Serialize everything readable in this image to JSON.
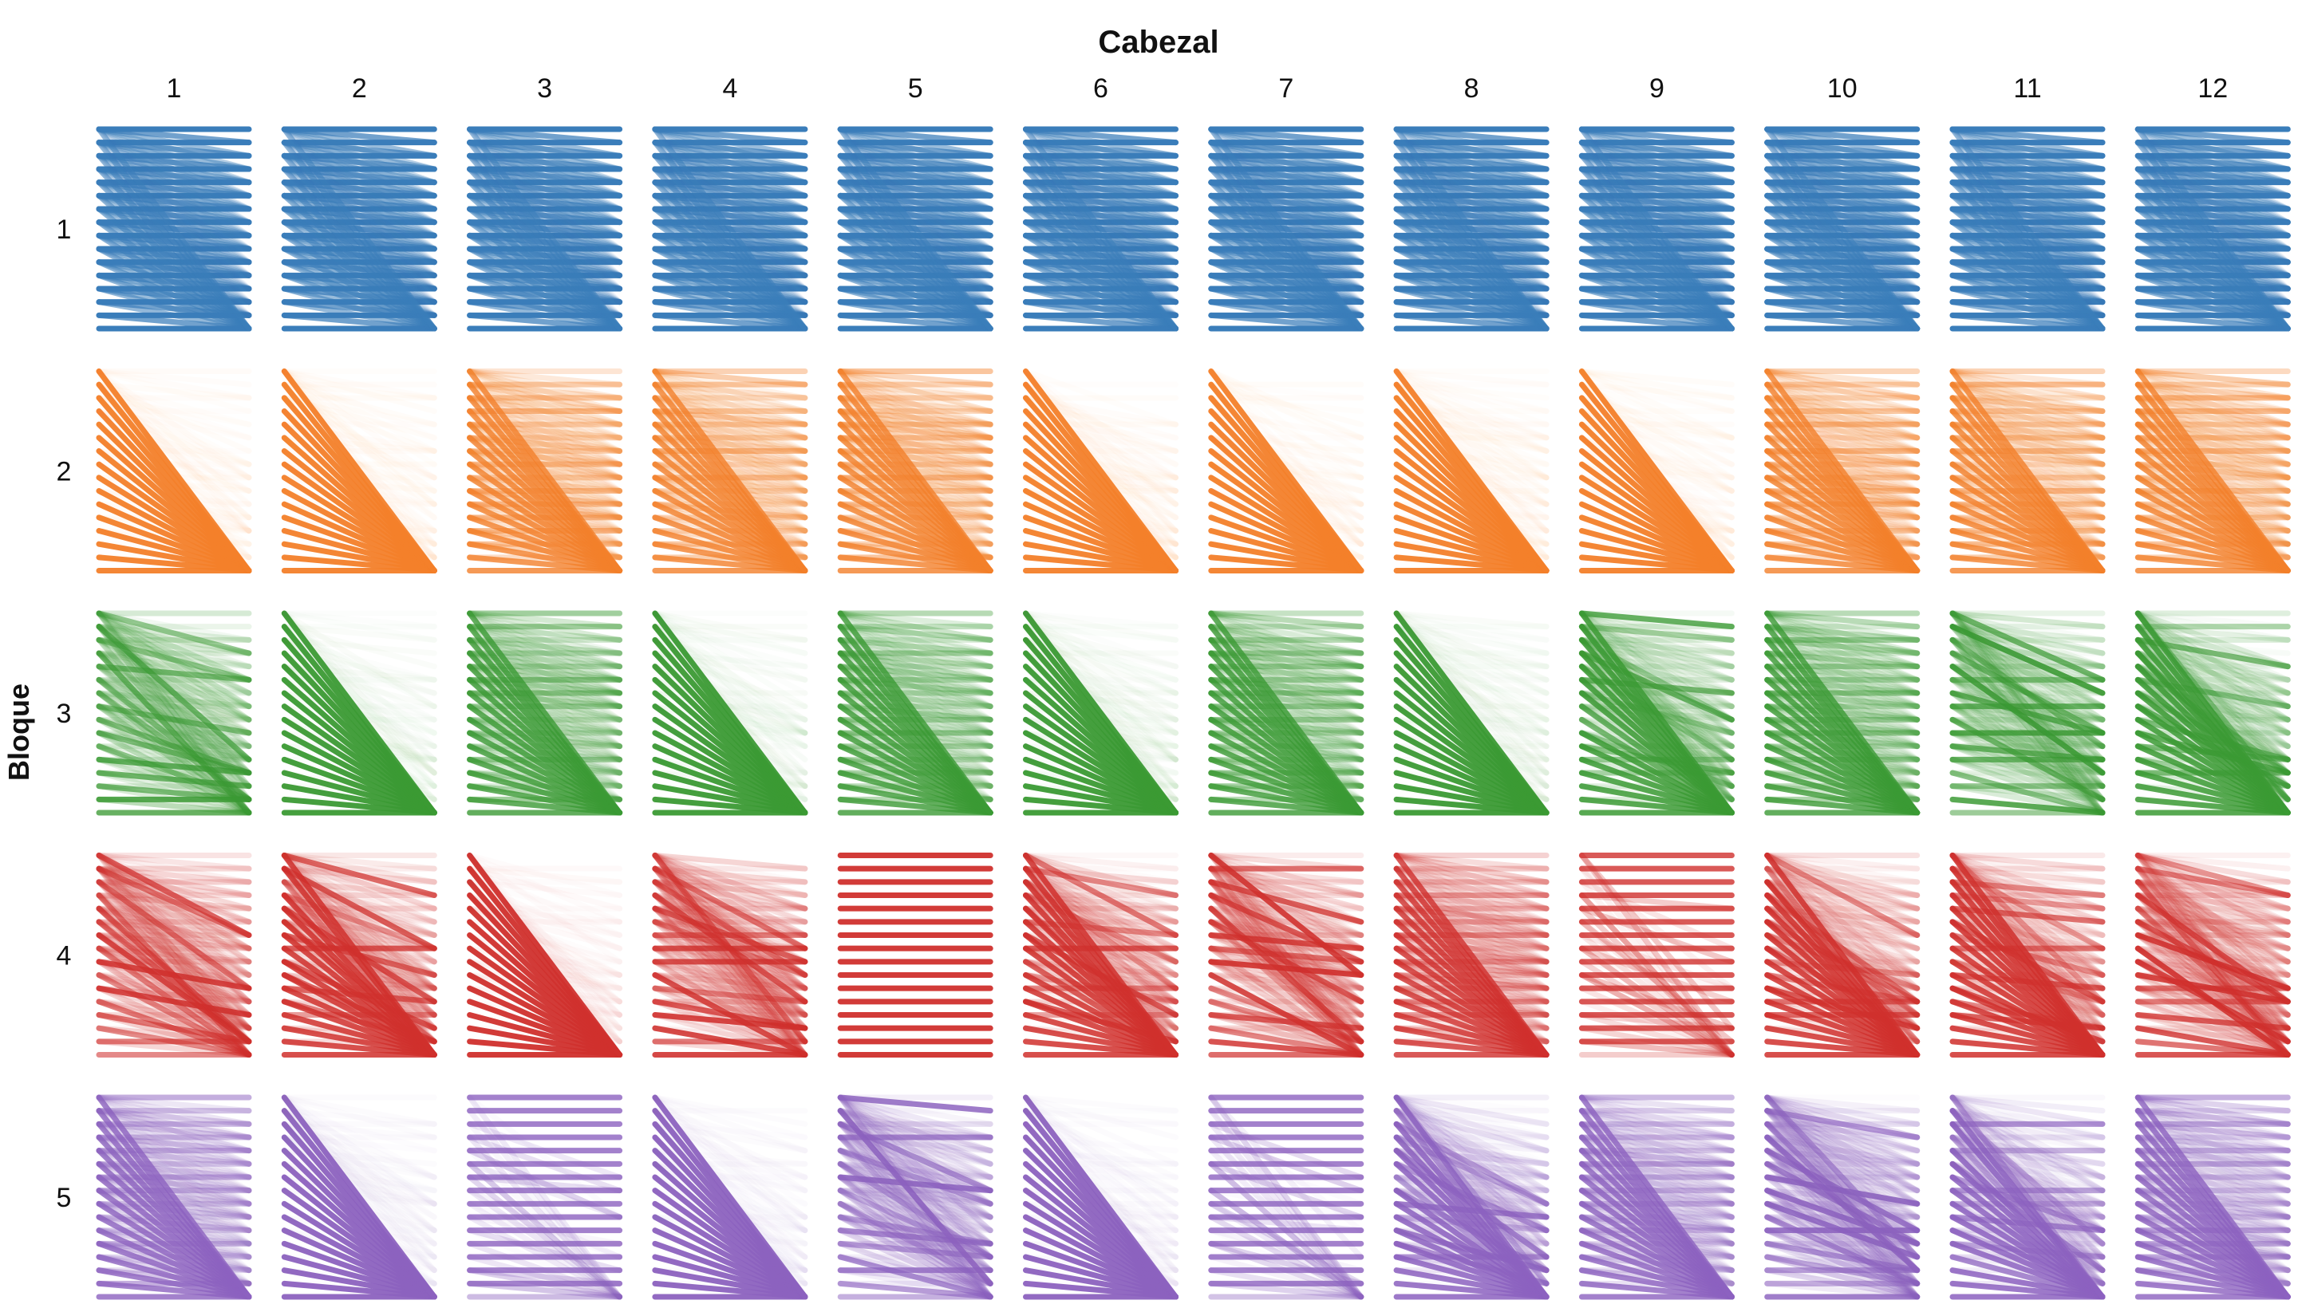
{
  "chart_data": {
    "type": "attention-grid",
    "title": "Cabezal",
    "ylabel": "Bloque",
    "columns": [
      "1",
      "2",
      "3",
      "4",
      "5",
      "6",
      "7",
      "8",
      "9",
      "10",
      "11",
      "12"
    ],
    "rows": [
      "1",
      "2",
      "3",
      "4",
      "5"
    ],
    "tokens": 16,
    "colors": [
      "#3a7dba",
      "#f3802a",
      "#3b9a34",
      "#d0302d",
      "#8c62bf"
    ],
    "patterns": [
      [
        "prev",
        "prev",
        "prev",
        "prev",
        "prev",
        "prev",
        "prev",
        "prev",
        "prev",
        "prev",
        "prev",
        "prev"
      ],
      [
        "first",
        "first",
        "prev-mix",
        "prev-mix",
        "prev-mix",
        "first",
        "first",
        "first",
        "first",
        "prev-mix",
        "prev-mix",
        "prev-mix"
      ],
      [
        "mixed",
        "first",
        "prev-mix",
        "first",
        "prev-mix",
        "first",
        "prev-mix",
        "first",
        "first-mixed",
        "prev-mix",
        "mixed",
        "first-mixed"
      ],
      [
        "mixed",
        "first-mixed",
        "first",
        "mixed",
        "diagonal",
        "first-mixed",
        "mixed",
        "prev-mix",
        "diag-mixed",
        "first-mixed",
        "first-mixed",
        "mixed"
      ],
      [
        "prev-mix",
        "first",
        "diag-mixed",
        "first",
        "mixed",
        "first",
        "diag-mixed",
        "first-mixed",
        "prev-mix",
        "mixed",
        "first-mixed",
        "prev-mix"
      ]
    ]
  }
}
